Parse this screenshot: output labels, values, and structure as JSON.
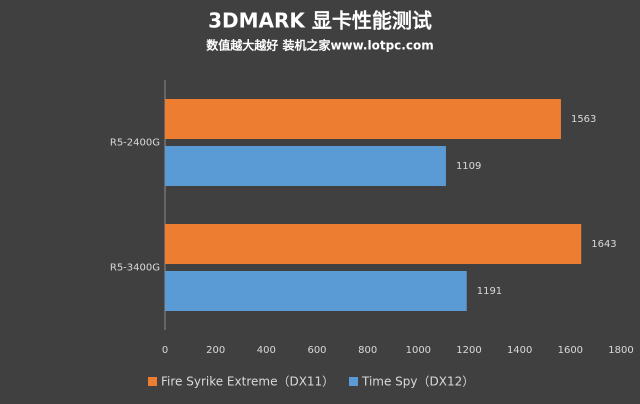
{
  "chart_data": {
    "type": "bar",
    "orientation": "horizontal",
    "title": "3DMARK 显卡性能测试",
    "subtitle": "数值越大越好 装机之家www.lotpc.com",
    "categories": [
      "R5-2400G",
      "R5-3400G"
    ],
    "series": [
      {
        "name": "Fire Syrike Extreme（DX11）",
        "color": "#ed7d31",
        "values": [
          1563,
          1643
        ]
      },
      {
        "name": "Time Spy（DX12）",
        "color": "#5b9bd5",
        "values": [
          1109,
          1191
        ]
      }
    ],
    "xlim": [
      0,
      1800
    ],
    "xticks": [
      0,
      200,
      400,
      600,
      800,
      1000,
      1200,
      1400,
      1600,
      1800
    ],
    "grid": false,
    "legend": "bottom"
  }
}
